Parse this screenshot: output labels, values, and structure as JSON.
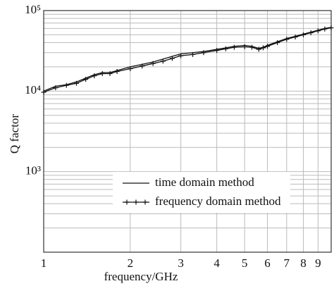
{
  "chart_data": {
    "type": "line",
    "xlabel": "frequency/GHz",
    "ylabel": "Q factor",
    "xlog": true,
    "ylog": true,
    "grid": true,
    "legend": "lower center",
    "xlim": [
      1,
      10
    ],
    "ylim": [
      100,
      100000
    ],
    "xticks": [
      1,
      2,
      3,
      4,
      5,
      6,
      7,
      8,
      9
    ],
    "yticks": [
      {
        "value": 1000,
        "label": "10³"
      },
      {
        "value": 10000,
        "label": "10⁴"
      },
      {
        "value": 100000,
        "label": "10⁵"
      }
    ],
    "yminorticks": [
      200,
      300,
      400,
      500,
      600,
      700,
      800,
      900,
      2000,
      3000,
      4000,
      5000,
      6000,
      7000,
      8000,
      9000,
      20000,
      30000,
      40000,
      50000,
      60000,
      70000,
      80000,
      90000
    ],
    "x": [
      1,
      1.1,
      1.2,
      1.3,
      1.4,
      1.5,
      1.6,
      1.7,
      1.8,
      2,
      2.2,
      2.4,
      2.6,
      2.8,
      3,
      3.3,
      3.6,
      4,
      4.3,
      4.6,
      5,
      5.3,
      5.6,
      5.8,
      6,
      6.5,
      7,
      7.5,
      8,
      8.5,
      9,
      9.5,
      10
    ],
    "series": [
      {
        "name": "time domain method",
        "color": "#111111",
        "marker": "none",
        "values": [
          10000,
          11500,
          12000,
          13000,
          14500,
          16000,
          17000,
          17000,
          18000,
          20000,
          21500,
          23000,
          25000,
          27000,
          29000,
          30000,
          31000,
          33000,
          34500,
          36000,
          37000,
          36000,
          34000,
          35000,
          37000,
          41000,
          45000,
          48000,
          51000,
          54000,
          57000,
          60000,
          62000
        ]
      },
      {
        "name": "frequency domain method",
        "color": "#111111",
        "marker": "+",
        "values": [
          9700,
          11000,
          11800,
          12500,
          14000,
          15500,
          16500,
          16500,
          17500,
          19000,
          20500,
          22000,
          23500,
          25500,
          27500,
          28500,
          30000,
          32000,
          33500,
          35000,
          35500,
          35000,
          33000,
          34500,
          36000,
          40000,
          44000,
          47000,
          50000,
          53000,
          56000,
          59000,
          61000
        ]
      }
    ]
  }
}
